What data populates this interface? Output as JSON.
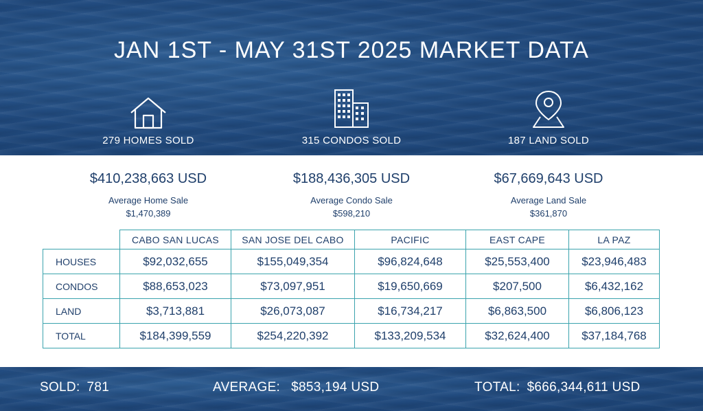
{
  "title": "JAN 1ST - MAY 31ST 2025 MARKET DATA",
  "stats": [
    {
      "icon": "house-icon",
      "sold": "279 HOMES SOLD",
      "amount": "$410,238,663 USD",
      "avg_label": "Average Home Sale",
      "avg_value": "$1,470,389"
    },
    {
      "icon": "buildings-icon",
      "sold": "315 CONDOS SOLD",
      "amount": "$188,436,305 USD",
      "avg_label": "Average Condo Sale",
      "avg_value": "$598,210"
    },
    {
      "icon": "location-pin-icon",
      "sold": "187 LAND SOLD",
      "amount": "$67,669,643 USD",
      "avg_label": "Average Land Sale",
      "avg_value": "$361,870"
    }
  ],
  "table": {
    "columns": [
      "CABO SAN LUCAS",
      "SAN JOSE DEL CABO",
      "PACIFIC",
      "EAST CAPE",
      "LA PAZ"
    ],
    "rows": [
      {
        "label": "HOUSES",
        "values": [
          "$92,032,655",
          "$155,049,354",
          "$96,824,648",
          "$25,553,400",
          "$23,946,483"
        ]
      },
      {
        "label": "CONDOS",
        "values": [
          "$88,653,023",
          "$73,097,951",
          "$19,650,669",
          "$207,500",
          "$6,432,162"
        ]
      },
      {
        "label": "LAND",
        "values": [
          "$3,713,881",
          "$26,073,087",
          "$16,734,217",
          "$6,863,500",
          "$6,806,123"
        ]
      },
      {
        "label": "TOTAL",
        "values": [
          "$184,399,559",
          "$254,220,392",
          "$133,209,534",
          "$32,624,400",
          "$37,184,768"
        ]
      }
    ]
  },
  "summary": {
    "sold_label": "SOLD:",
    "sold_value": "781",
    "average_label": "AVERAGE:",
    "average_value": "$853,194 USD",
    "total_label": "TOTAL:",
    "total_value": "$666,344,611 USD"
  },
  "colors": {
    "ocean": "#214b80",
    "text_dark": "#1f3f6b",
    "table_border": "#3aa3ad",
    "white": "#ffffff"
  }
}
